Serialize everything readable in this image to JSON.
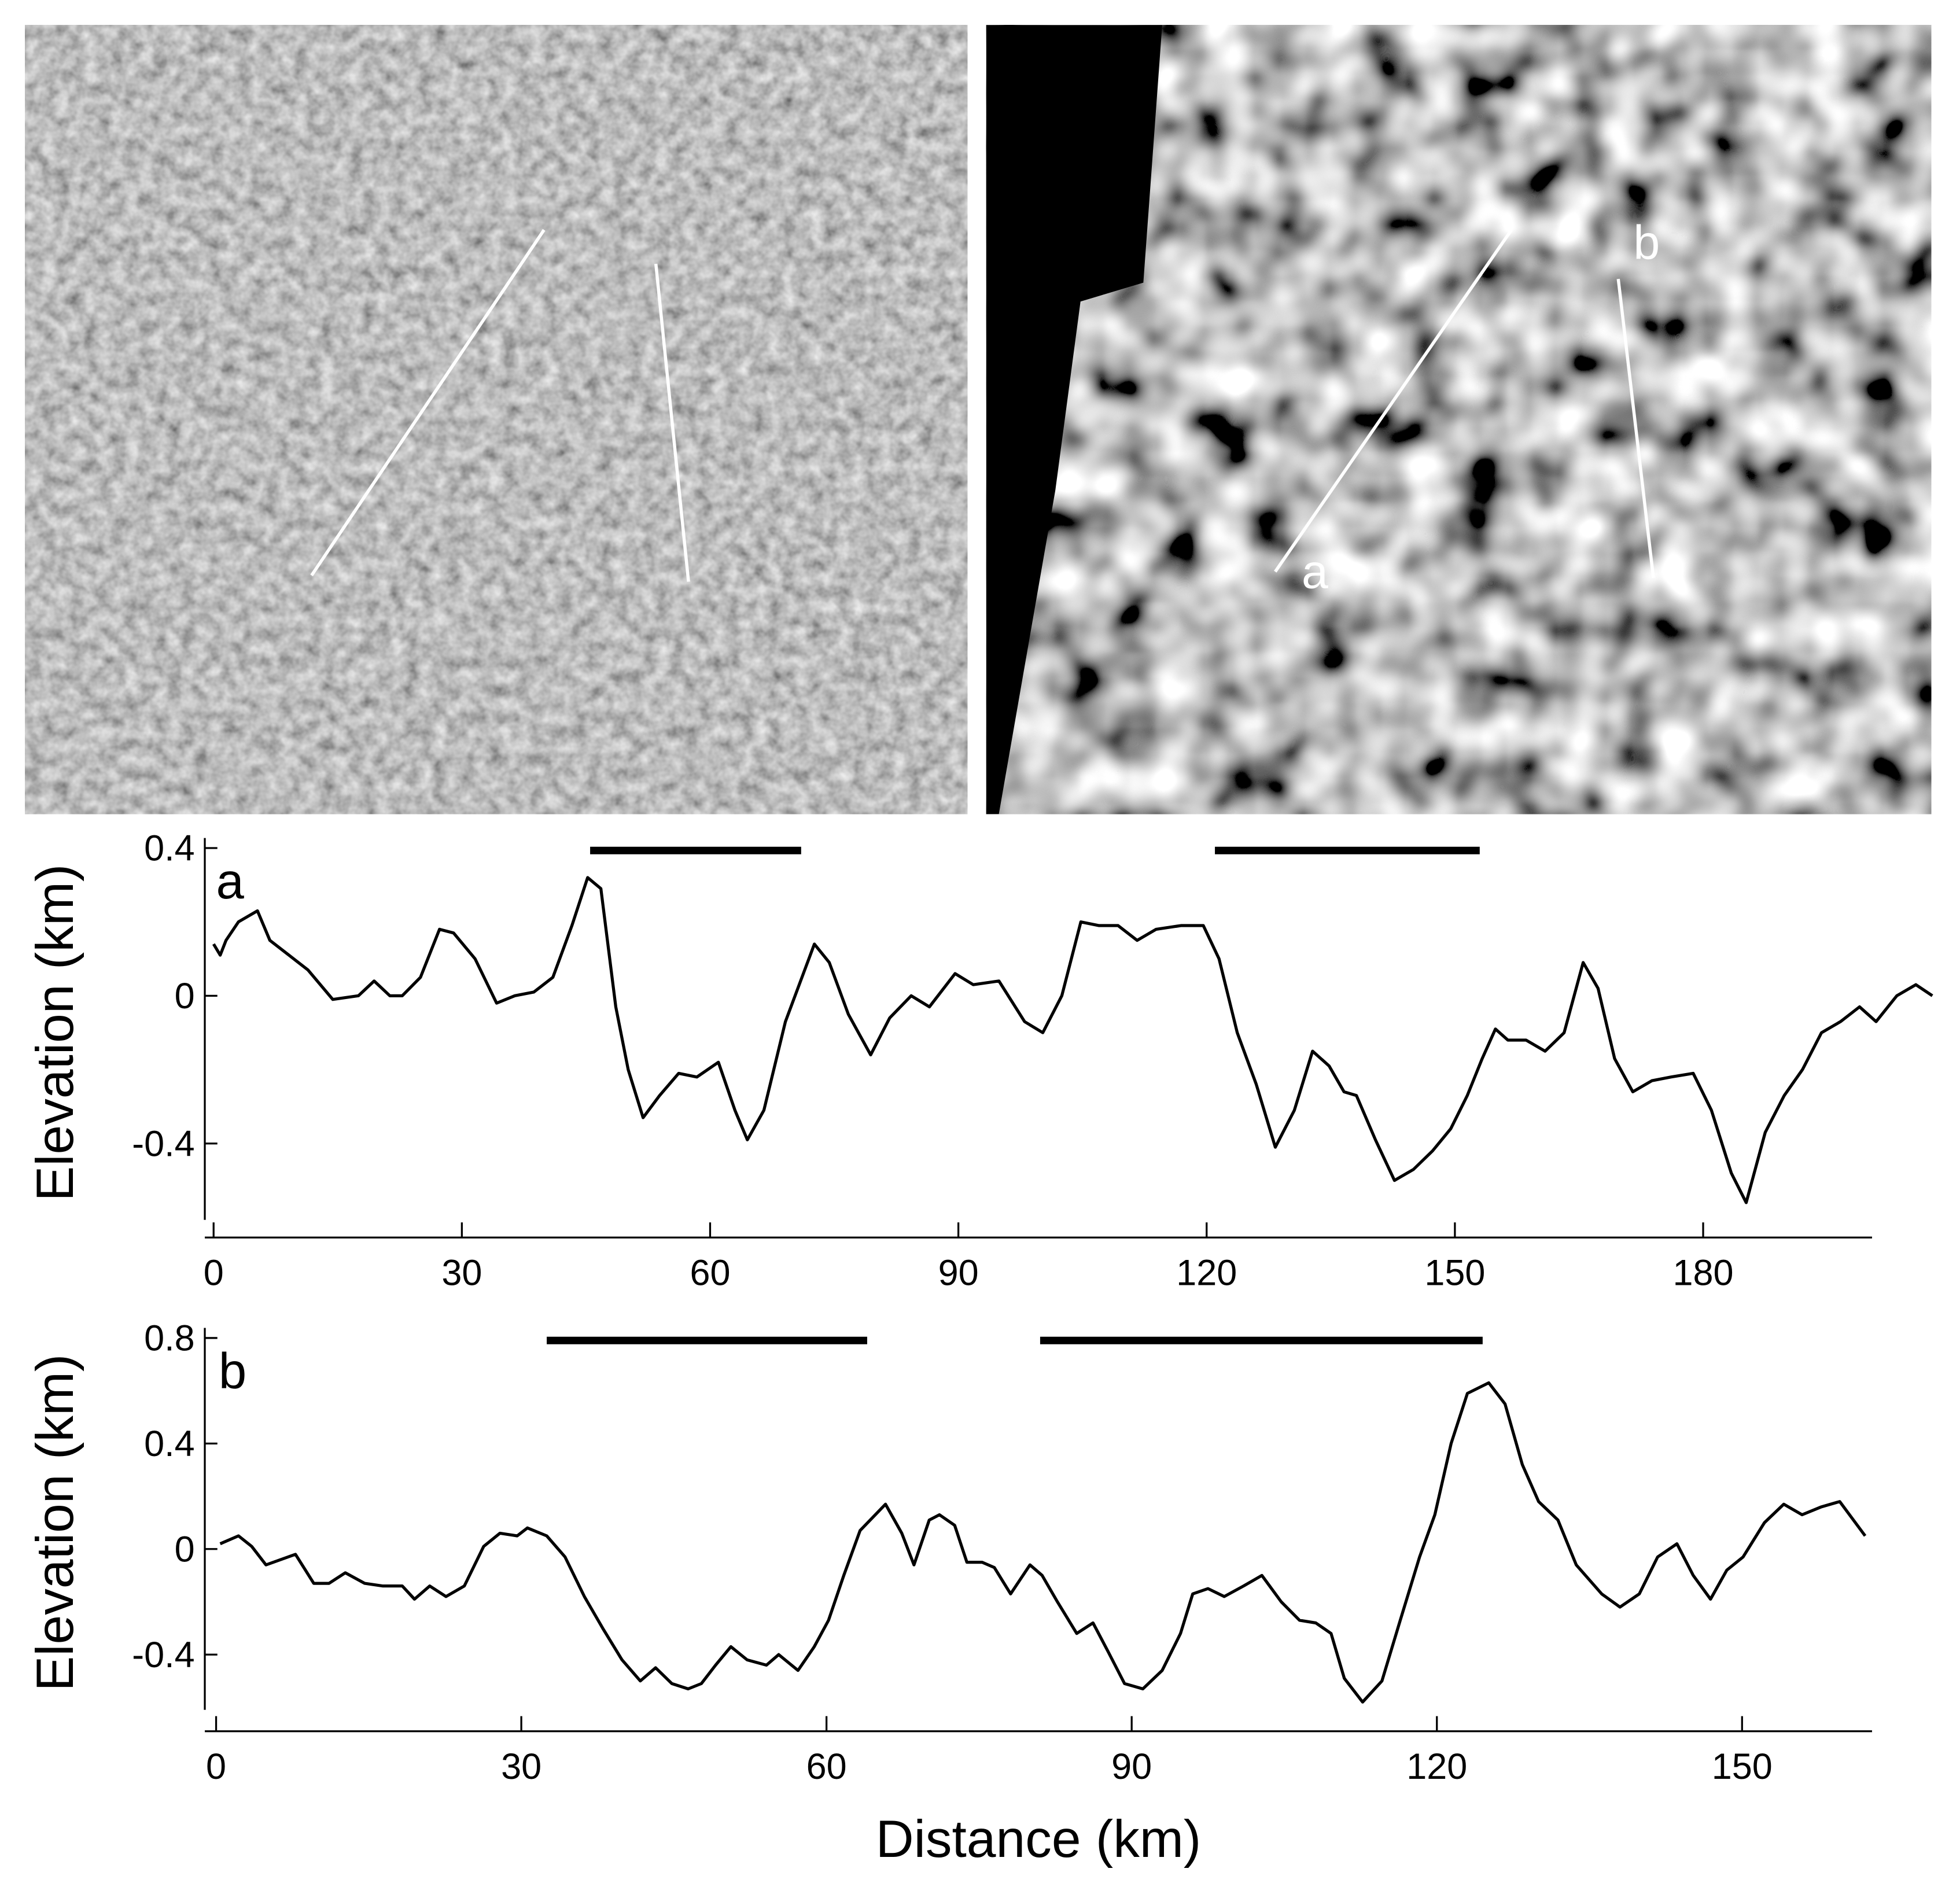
{
  "image_labels": [
    "a",
    "b"
  ],
  "chart_data": [
    {
      "type": "line",
      "label": "a",
      "ylabel": "Elevation (km)",
      "color": "#000000",
      "xlim": [
        0,
        208
      ],
      "ylim": [
        -0.6,
        0.4
      ],
      "xticks": [
        0,
        30,
        60,
        90,
        120,
        150,
        180
      ],
      "yticks": [
        -0.4,
        0,
        0.4
      ],
      "spans": [
        [
          45.5,
          71
        ],
        [
          121,
          153
        ]
      ],
      "x": [
        0,
        0.8,
        1.5,
        3,
        5.3,
        6.8,
        9.1,
        11.4,
        14.4,
        17.5,
        19.4,
        21.3,
        22.8,
        25,
        27.3,
        29,
        31.6,
        34.2,
        36.4,
        38.7,
        41,
        43.3,
        45.2,
        46.8,
        48.6,
        50.1,
        51.9,
        53.9,
        56.2,
        58.4,
        61,
        63,
        64.5,
        66.5,
        69.1,
        72.6,
        74.4,
        76.7,
        79.4,
        81.7,
        84.3,
        86.5,
        89.6,
        91.8,
        94.9,
        98,
        100.2,
        102.5,
        104.8,
        107,
        109.3,
        111.6,
        113.9,
        116.9,
        119.6,
        121.5,
        123.7,
        126,
        128.3,
        130.6,
        132.8,
        134.8,
        136.6,
        138.1,
        140.4,
        142.7,
        145,
        147.3,
        149.5,
        151.5,
        153.3,
        154.9,
        156.4,
        158.6,
        160.9,
        163.2,
        165.5,
        167.3,
        169.3,
        171.5,
        173.8,
        176.1,
        178.8,
        181,
        183.4,
        185.2,
        187.5,
        189.8,
        192,
        194.3,
        196.6,
        198.9,
        200.9,
        203.4,
        205.7,
        207.7
      ],
      "values": [
        0.14,
        0.11,
        0.15,
        0.2,
        0.23,
        0.15,
        0.11,
        0.07,
        -0.01,
        0,
        0.04,
        0,
        0,
        0.05,
        0.18,
        0.17,
        0.1,
        -0.02,
        0,
        0.01,
        0.05,
        0.19,
        0.32,
        0.29,
        -0.03,
        -0.2,
        -0.33,
        -0.27,
        -0.21,
        -0.22,
        -0.18,
        -0.31,
        -0.39,
        -0.31,
        -0.07,
        0.14,
        0.09,
        -0.05,
        -0.16,
        -0.06,
        0,
        -0.03,
        0.06,
        0.03,
        0.04,
        -0.07,
        -0.1,
        0,
        0.2,
        0.19,
        0.19,
        0.15,
        0.18,
        0.19,
        0.19,
        0.1,
        -0.1,
        -0.24,
        -0.41,
        -0.31,
        -0.15,
        -0.19,
        -0.26,
        -0.27,
        -0.39,
        -0.5,
        -0.47,
        -0.42,
        -0.36,
        -0.27,
        -0.17,
        -0.09,
        -0.12,
        -0.12,
        -0.15,
        -0.1,
        0.09,
        0.02,
        -0.17,
        -0.26,
        -0.23,
        -0.22,
        -0.21,
        -0.31,
        -0.48,
        -0.56,
        -0.37,
        -0.27,
        -0.2,
        -0.1,
        -0.07,
        -0.03,
        -0.07,
        0,
        0.03,
        0
      ]
    },
    {
      "type": "line",
      "label": "b",
      "ylabel": "Elevation (km)",
      "xlabel": "Distance (km)",
      "color": "#000000",
      "xlim": [
        0,
        165
      ],
      "ylim": [
        -0.6,
        0.8
      ],
      "xticks": [
        0,
        30,
        60,
        90,
        120,
        150
      ],
      "yticks": [
        -0.4,
        0,
        0.4,
        0.8
      ],
      "spans": [
        [
          32.5,
          64
        ],
        [
          81,
          124.5
        ]
      ],
      "x": [
        0.4,
        2.2,
        3.5,
        4.9,
        7.8,
        9.6,
        11.1,
        12.7,
        14.6,
        16.4,
        18.3,
        19.5,
        21,
        22.6,
        24.4,
        26.3,
        27.9,
        29.6,
        30.6,
        32.5,
        34.3,
        36.2,
        38,
        39.9,
        41.7,
        43.2,
        44.8,
        46.4,
        47.7,
        49.1,
        50.6,
        52.2,
        54.1,
        55.3,
        57.2,
        58.8,
        60.2,
        61.7,
        63.3,
        65.8,
        67.4,
        68.6,
        70.1,
        71.1,
        72.6,
        73.8,
        75.3,
        76.5,
        78.1,
        80,
        81.2,
        82.7,
        84.6,
        86.2,
        87.7,
        89.3,
        91.1,
        93,
        94.8,
        96,
        97.5,
        99.1,
        101,
        102.8,
        104.7,
        106.5,
        108.1,
        109.6,
        110.9,
        112.7,
        114.6,
        116.4,
        118.3,
        119.8,
        121.4,
        123,
        125.1,
        126.7,
        128.4,
        130,
        131.9,
        133.7,
        136.2,
        138,
        139.9,
        141.7,
        143.6,
        145.2,
        146.9,
        148.5,
        150.1,
        152.2,
        154.1,
        155.9,
        157.8,
        159.6,
        162.1
      ],
      "values": [
        0.02,
        0.05,
        0.01,
        -0.06,
        -0.02,
        -0.13,
        -0.13,
        -0.09,
        -0.13,
        -0.14,
        -0.14,
        -0.19,
        -0.14,
        -0.18,
        -0.14,
        0.01,
        0.06,
        0.05,
        0.08,
        0.05,
        -0.03,
        -0.18,
        -0.3,
        -0.42,
        -0.5,
        -0.45,
        -0.51,
        -0.53,
        -0.51,
        -0.44,
        -0.37,
        -0.42,
        -0.44,
        -0.4,
        -0.46,
        -0.37,
        -0.27,
        -0.1,
        0.07,
        0.17,
        0.06,
        -0.06,
        0.11,
        0.13,
        0.09,
        -0.05,
        -0.05,
        -0.07,
        -0.17,
        -0.06,
        -0.1,
        -0.2,
        -0.32,
        -0.28,
        -0.39,
        -0.51,
        -0.53,
        -0.46,
        -0.32,
        -0.17,
        -0.15,
        -0.18,
        -0.14,
        -0.1,
        -0.2,
        -0.27,
        -0.28,
        -0.32,
        -0.49,
        -0.58,
        -0.5,
        -0.27,
        -0.03,
        0.13,
        0.4,
        0.59,
        0.63,
        0.55,
        0.32,
        0.18,
        0.11,
        -0.06,
        -0.17,
        -0.22,
        -0.17,
        -0.03,
        0.02,
        -0.1,
        -0.19,
        -0.08,
        -0.03,
        0.1,
        0.17,
        0.13,
        0.16,
        0.18,
        0.05
      ]
    }
  ]
}
